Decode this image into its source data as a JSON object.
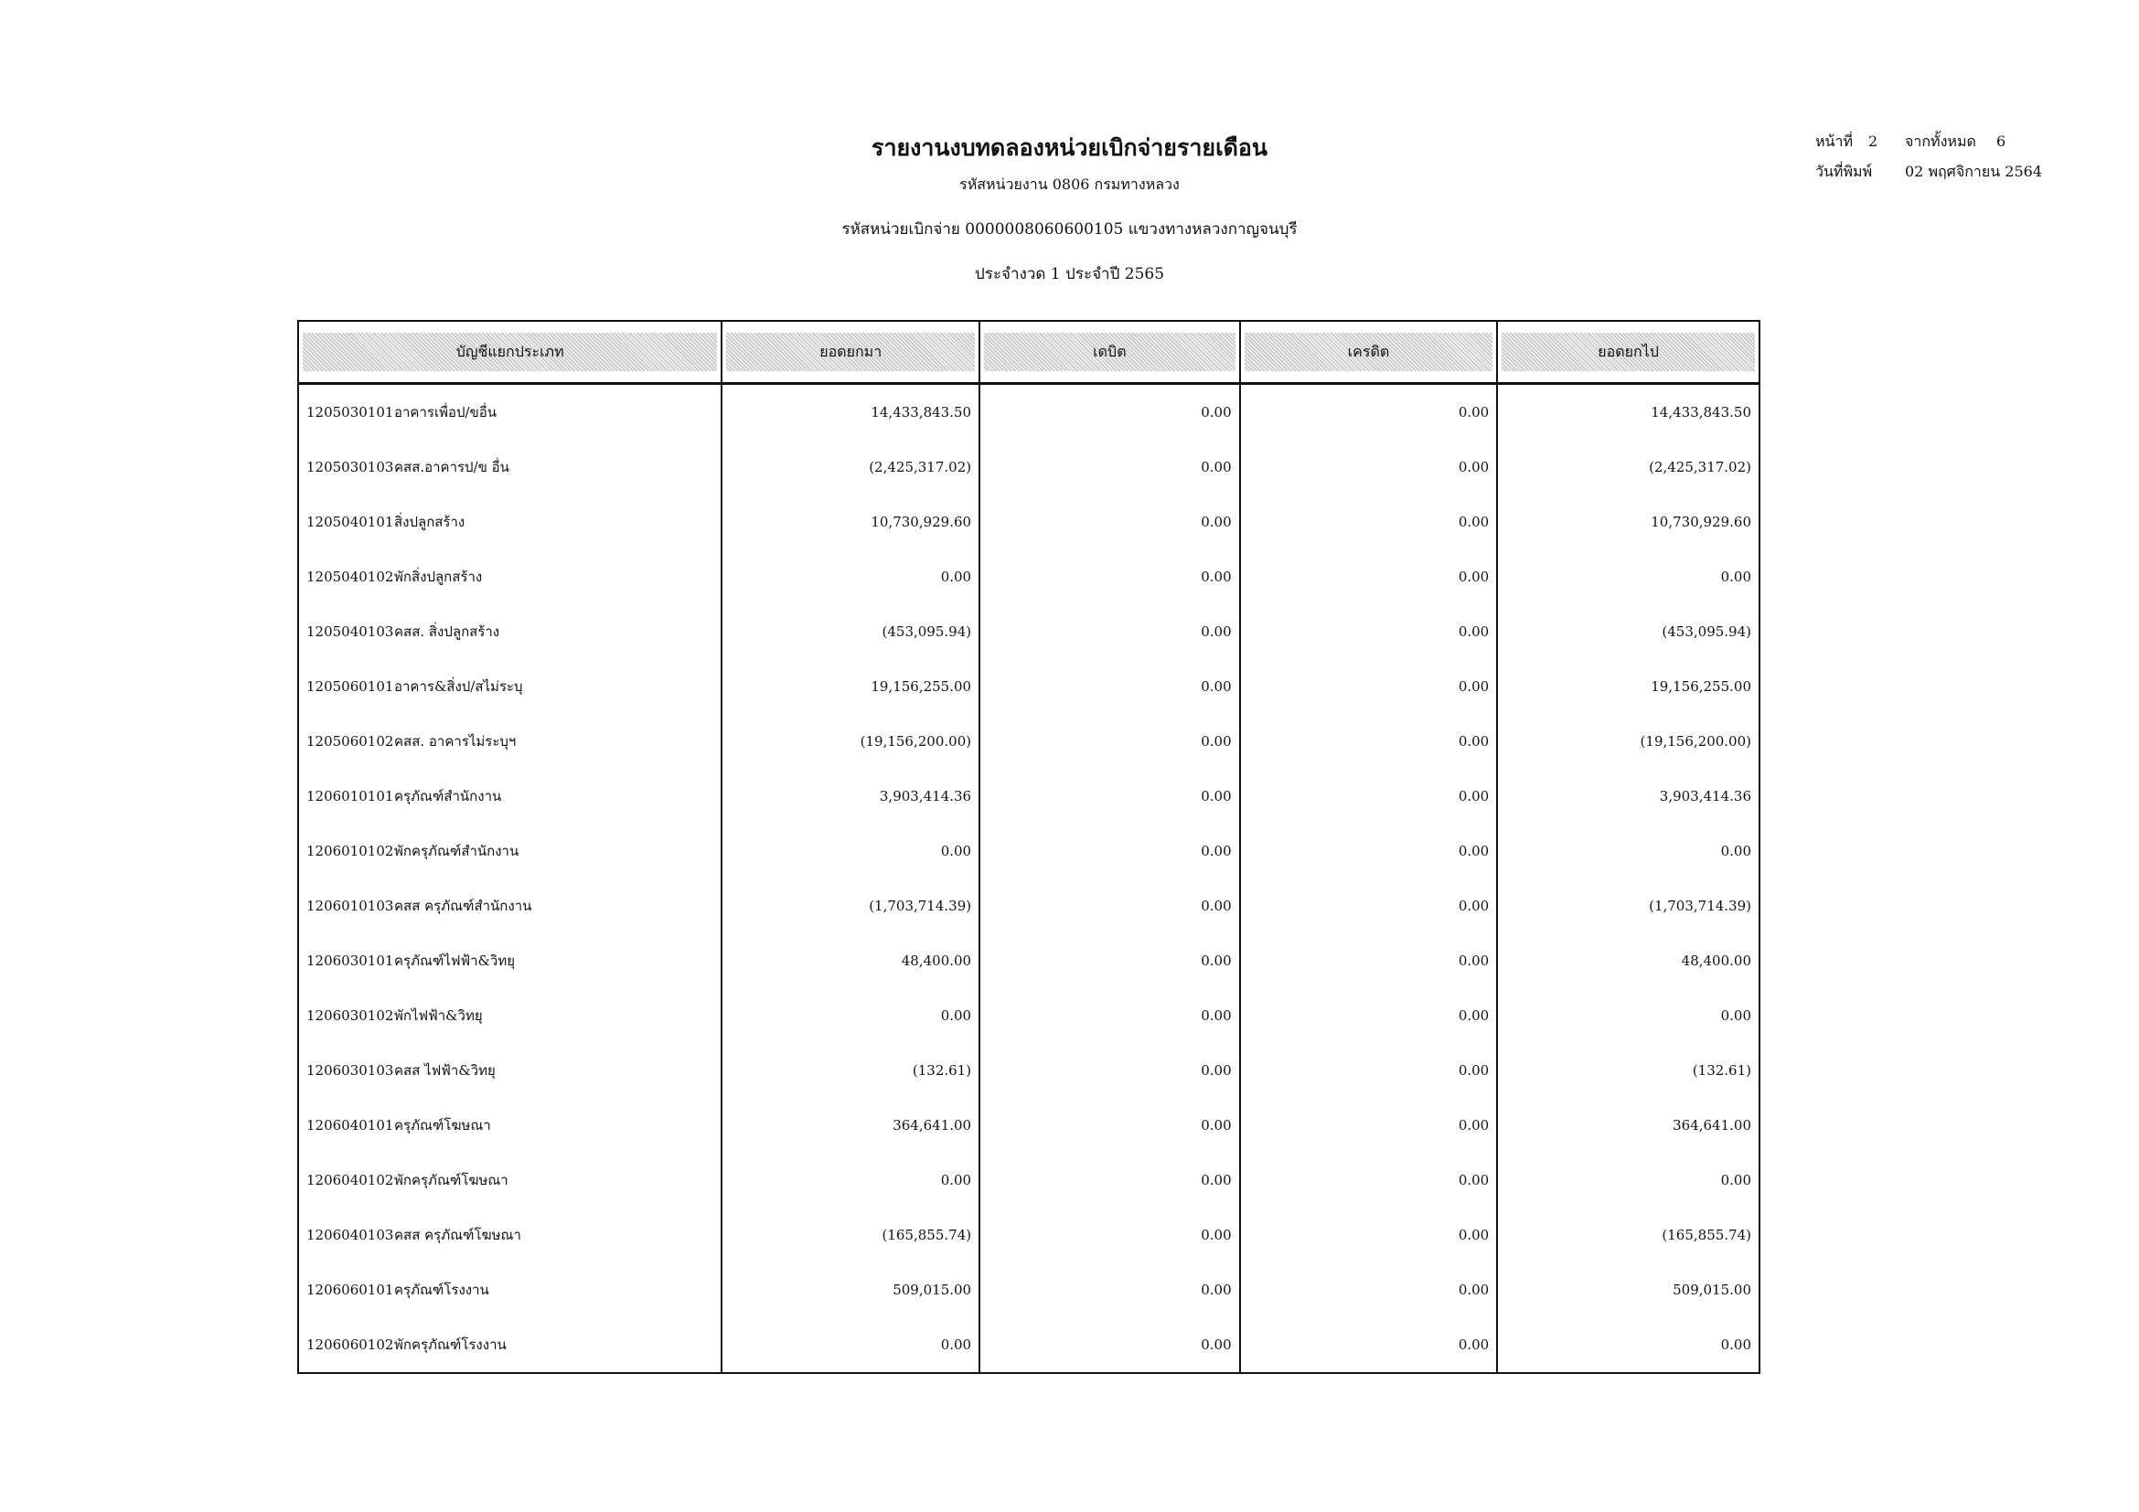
{
  "header": {
    "title": "รายงานงบทดลองหน่วยเบิกจ่ายรายเดือน",
    "agency": "รหัสหน่วยงาน 0806 กรมทางหลวง",
    "disbursing_unit": "รหัสหน่วยเบิกจ่าย 0000008060600105 แขวงทางหลวงกาญจนบุรี",
    "period": "ประจำงวด 1 ประจำปี 2565"
  },
  "meta": {
    "page_label": "หน้าที่",
    "page": "2",
    "total_label": "จากทั้งหมด",
    "total": "6",
    "print_date_label": "วันที่พิมพ์",
    "print_date": "02 พฤศจิกายน 2564"
  },
  "table": {
    "columns": [
      "บัญชีแยกประเภท",
      "ยอดยกมา",
      "เดบิต",
      "เครดิต",
      "ยอดยกไป"
    ],
    "rows": [
      {
        "code": "1205030101",
        "name": "อาคารเพื่อป/ขอื่น",
        "bf": "14,433,843.50",
        "dr": "0.00",
        "cr": "0.00",
        "cf": "14,433,843.50"
      },
      {
        "code": "1205030103",
        "name": "คสส.อาคารป/ข อื่น",
        "bf": "(2,425,317.02)",
        "dr": "0.00",
        "cr": "0.00",
        "cf": "(2,425,317.02)"
      },
      {
        "code": "1205040101",
        "name": "สิ่งปลูกสร้าง",
        "bf": "10,730,929.60",
        "dr": "0.00",
        "cr": "0.00",
        "cf": "10,730,929.60"
      },
      {
        "code": "1205040102",
        "name": "พักสิ่งปลูกสร้าง",
        "bf": "0.00",
        "dr": "0.00",
        "cr": "0.00",
        "cf": "0.00"
      },
      {
        "code": "1205040103",
        "name": "คสส. สิ่งปลูกสร้าง",
        "bf": "(453,095.94)",
        "dr": "0.00",
        "cr": "0.00",
        "cf": "(453,095.94)"
      },
      {
        "code": "1205060101",
        "name": "อาคาร&สิ่งป/สไม่ระบุ",
        "bf": "19,156,255.00",
        "dr": "0.00",
        "cr": "0.00",
        "cf": "19,156,255.00"
      },
      {
        "code": "1205060102",
        "name": "คสส. อาคารไม่ระบุฯ",
        "bf": "(19,156,200.00)",
        "dr": "0.00",
        "cr": "0.00",
        "cf": "(19,156,200.00)"
      },
      {
        "code": "1206010101",
        "name": "ครุภัณฑ์สำนักงาน",
        "bf": "3,903,414.36",
        "dr": "0.00",
        "cr": "0.00",
        "cf": "3,903,414.36"
      },
      {
        "code": "1206010102",
        "name": "พักครุภัณฑ์สำนักงาน",
        "bf": "0.00",
        "dr": "0.00",
        "cr": "0.00",
        "cf": "0.00"
      },
      {
        "code": "1206010103",
        "name": "คสส ครุภัณฑ์สำนักงาน",
        "bf": "(1,703,714.39)",
        "dr": "0.00",
        "cr": "0.00",
        "cf": "(1,703,714.39)"
      },
      {
        "code": "1206030101",
        "name": "ครุภัณฑ์ไฟฟ้า&วิทยุ",
        "bf": "48,400.00",
        "dr": "0.00",
        "cr": "0.00",
        "cf": "48,400.00"
      },
      {
        "code": "1206030102",
        "name": "พักไฟฟ้า&วิทยุ",
        "bf": "0.00",
        "dr": "0.00",
        "cr": "0.00",
        "cf": "0.00"
      },
      {
        "code": "1206030103",
        "name": "คสส ไฟฟ้า&วิทยุ",
        "bf": "(132.61)",
        "dr": "0.00",
        "cr": "0.00",
        "cf": "(132.61)"
      },
      {
        "code": "1206040101",
        "name": "ครุภัณฑ์โฆษณา",
        "bf": "364,641.00",
        "dr": "0.00",
        "cr": "0.00",
        "cf": "364,641.00"
      },
      {
        "code": "1206040102",
        "name": "พักครุภัณฑ์โฆษณา",
        "bf": "0.00",
        "dr": "0.00",
        "cr": "0.00",
        "cf": "0.00"
      },
      {
        "code": "1206040103",
        "name": "คสส ครุภัณฑ์โฆษณา",
        "bf": "(165,855.74)",
        "dr": "0.00",
        "cr": "0.00",
        "cf": "(165,855.74)"
      },
      {
        "code": "1206060101",
        "name": "ครุภัณฑ์โรงงาน",
        "bf": "509,015.00",
        "dr": "0.00",
        "cr": "0.00",
        "cf": "509,015.00"
      },
      {
        "code": "1206060102",
        "name": "พักครุภัณฑ์โรงงาน",
        "bf": "0.00",
        "dr": "0.00",
        "cr": "0.00",
        "cf": "0.00"
      }
    ]
  }
}
